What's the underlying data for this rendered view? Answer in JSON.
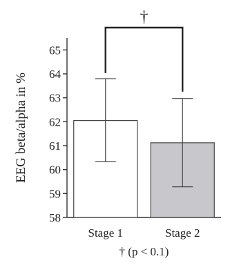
{
  "chart_data": {
    "type": "bar",
    "categories": [
      "Stage 1",
      "Stage 2"
    ],
    "values": [
      62.05,
      61.12
    ],
    "error_bars": [
      {
        "low": 60.33,
        "high": 63.8
      },
      {
        "low": 59.28,
        "high": 62.97
      }
    ],
    "bar_colors": [
      "#ffffff",
      "#c8c8cc"
    ],
    "ylabel": "EEG beta/alpha in %",
    "xlabel": "",
    "ylim": [
      58,
      65.5
    ],
    "yticks": [
      58,
      59,
      60,
      61,
      62,
      63,
      64,
      65
    ],
    "significance": {
      "marker": "†",
      "between": [
        "Stage 1",
        "Stage 2"
      ]
    },
    "footnote": "† (p < 0.1)"
  }
}
